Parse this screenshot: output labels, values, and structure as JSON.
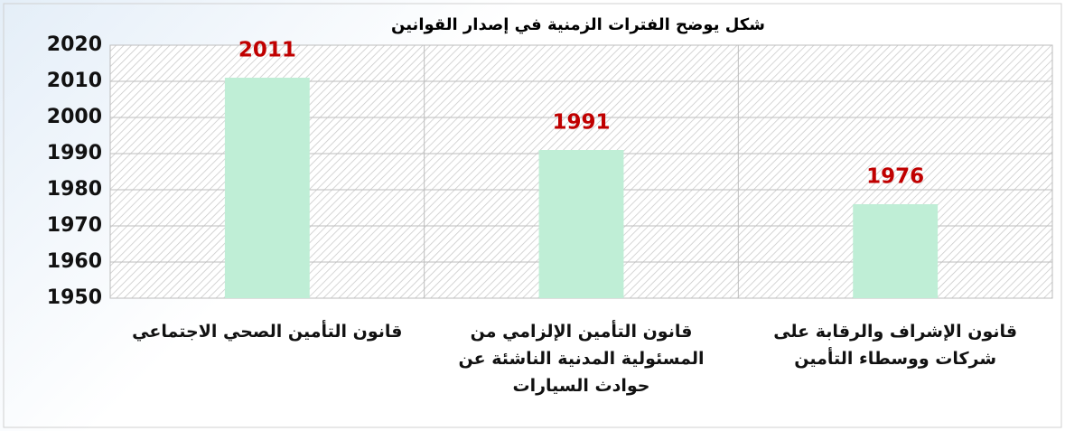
{
  "chart_data": {
    "type": "bar",
    "title": "شكل يوضح  الفترات الزمنية في إصدار القوانين",
    "categories": [
      "قانون التأمين الصحي الاجتماعي",
      "قانون التأمين الإلزامي من المسئولية المدنية الناشئة عن حوادث السيارات",
      "قانون الإشراف والرقابة على شركات ووسطاء التأمين"
    ],
    "values": [
      2011,
      1991,
      1976
    ],
    "color": "#bfeed6",
    "label_color": "#c00000",
    "ylim": [
      1950,
      2020
    ],
    "yticks": [
      1950,
      1960,
      1970,
      1980,
      1990,
      2000,
      2010,
      2020
    ],
    "grid": true
  }
}
